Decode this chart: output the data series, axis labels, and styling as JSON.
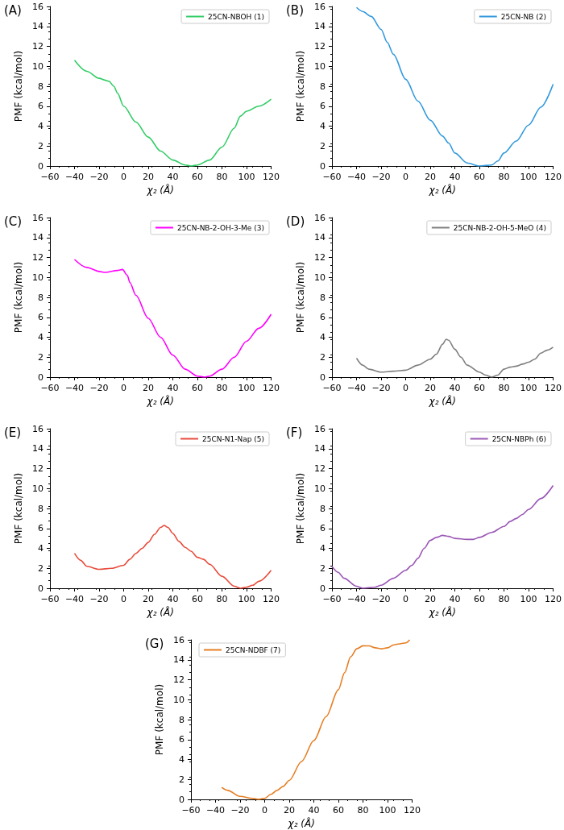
{
  "chart_data": [
    {
      "type": "line",
      "title": "(A)",
      "xlabel": "χ₂ (Å)",
      "ylabel": "PMF (kcal/mol)",
      "xlim": [
        -60,
        120
      ],
      "xticks": [
        -60,
        -40,
        -20,
        0,
        20,
        40,
        60,
        80,
        100,
        120
      ],
      "ylim": [
        0,
        16
      ],
      "yticks": [
        0,
        2,
        4,
        6,
        8,
        10,
        12,
        14,
        16
      ],
      "legend": "top right",
      "series": [
        {
          "name": "25CN-NBOH (1)",
          "color": "#33cc66",
          "x": [
            -40,
            -30,
            -20,
            -15,
            -12,
            -8,
            -5,
            0,
            10,
            20,
            30,
            40,
            50,
            55,
            60,
            70,
            80,
            90,
            95,
            100,
            110,
            120
          ],
          "values": [
            10.6,
            9.5,
            8.8,
            8.6,
            8.5,
            8.0,
            7.3,
            6.0,
            4.4,
            2.9,
            1.5,
            0.6,
            0.1,
            0,
            0.1,
            0.6,
            1.9,
            3.8,
            5.0,
            5.5,
            6.0,
            6.7
          ]
        }
      ]
    },
    {
      "type": "line",
      "title": "(B)",
      "xlabel": "χ₂ (Å)",
      "ylabel": "PMF (kcal/mol)",
      "xlim": [
        -60,
        120
      ],
      "xticks": [
        -60,
        -40,
        -20,
        0,
        20,
        40,
        60,
        80,
        100,
        120
      ],
      "ylim": [
        0,
        16
      ],
      "yticks": [
        0,
        2,
        4,
        6,
        8,
        10,
        12,
        14,
        16
      ],
      "legend": "top right",
      "series": [
        {
          "name": "25CN-NB (2)",
          "color": "#3399dd",
          "x": [
            -40,
            -35,
            -28,
            -20,
            -15,
            -10,
            0,
            10,
            20,
            30,
            35,
            40,
            50,
            60,
            70,
            75,
            80,
            90,
            100,
            110,
            120
          ],
          "values": [
            15.9,
            15.5,
            15.0,
            13.7,
            12.4,
            11.2,
            8.7,
            6.5,
            4.6,
            3.0,
            2.3,
            1.3,
            0.3,
            0,
            0.1,
            0.5,
            1.3,
            2.5,
            4.1,
            5.9,
            8.2
          ]
        }
      ]
    },
    {
      "type": "line",
      "title": "(C)",
      "xlabel": "χ₂ (Å)",
      "ylabel": "PMF (kcal/mol)",
      "xlim": [
        -60,
        120
      ],
      "xticks": [
        -60,
        -40,
        -20,
        0,
        20,
        40,
        60,
        80,
        100,
        120
      ],
      "ylim": [
        0,
        16
      ],
      "yticks": [
        0,
        2,
        4,
        6,
        8,
        10,
        12,
        14,
        16
      ],
      "legend": "top right",
      "series": [
        {
          "name": "25CN-NB-2-OH-3-Me (3)",
          "color": "#ff00ff",
          "x": [
            -40,
            -30,
            -20,
            -15,
            -5,
            -1,
            3,
            5,
            10,
            20,
            30,
            40,
            50,
            60,
            66,
            70,
            80,
            90,
            100,
            110,
            120
          ],
          "values": [
            11.8,
            11.0,
            10.6,
            10.5,
            10.7,
            10.8,
            10.2,
            9.5,
            8.2,
            5.9,
            4.0,
            2.2,
            0.8,
            0.1,
            0,
            0.1,
            0.8,
            2.0,
            3.6,
            4.9,
            6.3
          ]
        }
      ]
    },
    {
      "type": "line",
      "title": "(D)",
      "xlabel": "χ₂ (Å)",
      "ylabel": "PMF (kcal/mol)",
      "xlim": [
        -60,
        120
      ],
      "xticks": [
        -60,
        -40,
        -20,
        0,
        20,
        40,
        60,
        80,
        100,
        120
      ],
      "ylim": [
        0,
        16
      ],
      "yticks": [
        0,
        2,
        4,
        6,
        8,
        10,
        12,
        14,
        16
      ],
      "legend": "top right",
      "series": [
        {
          "name": "25CN-NB-2-OH-5-MeO (4)",
          "color": "#808080",
          "x": [
            -40,
            -35,
            -30,
            -20,
            -10,
            0,
            10,
            20,
            25,
            30,
            33,
            35,
            40,
            45,
            50,
            60,
            65,
            70,
            75,
            80,
            85,
            90,
            95,
            100,
            105,
            110,
            115,
            120
          ],
          "values": [
            1.9,
            1.2,
            0.8,
            0.5,
            0.6,
            0.7,
            1.2,
            1.8,
            2.3,
            3.3,
            3.8,
            3.7,
            2.8,
            2.0,
            1.2,
            0.5,
            0.2,
            0,
            0.2,
            0.8,
            1.0,
            1.1,
            1.3,
            1.5,
            1.8,
            2.4,
            2.7,
            3.0
          ]
        }
      ]
    },
    {
      "type": "line",
      "title": "(E)",
      "xlabel": "χ₂ (Å)",
      "ylabel": "PMF (kcal/mol)",
      "xlim": [
        -60,
        120
      ],
      "xticks": [
        -60,
        -40,
        -20,
        0,
        20,
        40,
        60,
        80,
        100,
        120
      ],
      "ylim": [
        0,
        16
      ],
      "yticks": [
        0,
        2,
        4,
        6,
        8,
        10,
        12,
        14,
        16
      ],
      "legend": "top right",
      "series": [
        {
          "name": "25CN-N1-Nap (5)",
          "color": "#e74c3c",
          "x": [
            -40,
            -35,
            -30,
            -20,
            -10,
            0,
            5,
            10,
            15,
            20,
            25,
            30,
            33,
            36,
            40,
            45,
            50,
            55,
            60,
            65,
            70,
            80,
            90,
            95,
            100,
            105,
            110,
            120
          ],
          "values": [
            3.5,
            2.8,
            2.2,
            1.9,
            2.0,
            2.3,
            2.9,
            3.5,
            4.0,
            4.6,
            5.4,
            6.1,
            6.3,
            6.1,
            5.5,
            4.7,
            4.1,
            3.7,
            3.1,
            2.9,
            2.4,
            1.2,
            0.2,
            0,
            0.1,
            0.3,
            0.7,
            1.8
          ]
        }
      ]
    },
    {
      "type": "line",
      "title": "(F)",
      "xlabel": "χ₂ (Å)",
      "ylabel": "PMF (kcal/mol)",
      "xlim": [
        -60,
        120
      ],
      "xticks": [
        -60,
        -40,
        -20,
        0,
        20,
        40,
        60,
        80,
        100,
        120
      ],
      "ylim": [
        0,
        16
      ],
      "yticks": [
        0,
        2,
        4,
        6,
        8,
        10,
        12,
        14,
        16
      ],
      "legend": "top right",
      "series": [
        {
          "name": "25CN-NBPh (6)",
          "color": "#9b59b6",
          "x": [
            -60,
            -55,
            -50,
            -40,
            -35,
            -25,
            -20,
            -10,
            0,
            5,
            10,
            15,
            20,
            25,
            30,
            35,
            40,
            50,
            55,
            60,
            70,
            80,
            85,
            90,
            95,
            100,
            110,
            120
          ],
          "values": [
            2.2,
            1.6,
            1.0,
            0.2,
            0,
            0.1,
            0.3,
            1.0,
            1.8,
            2.3,
            3.0,
            4.0,
            4.8,
            5.1,
            5.3,
            5.2,
            5.0,
            4.9,
            4.9,
            5.1,
            5.6,
            6.2,
            6.7,
            7.0,
            7.4,
            7.9,
            9.0,
            10.3
          ]
        }
      ]
    },
    {
      "type": "line",
      "title": "(G)",
      "xlabel": "χ₂ (Å)",
      "ylabel": "PMF (kcal/mol)",
      "xlim": [
        -60,
        120
      ],
      "xticks": [
        -60,
        -40,
        -20,
        0,
        20,
        40,
        60,
        80,
        100,
        120
      ],
      "ylim": [
        0,
        16
      ],
      "yticks": [
        0,
        2,
        4,
        6,
        8,
        10,
        12,
        14,
        16
      ],
      "legend": "top left",
      "series": [
        {
          "name": "25CN-NDBF (7)",
          "color": "#e67e22",
          "x": [
            -35,
            -30,
            -20,
            -10,
            -5,
            0,
            5,
            10,
            15,
            20,
            30,
            40,
            50,
            60,
            65,
            70,
            75,
            80,
            85,
            90,
            95,
            100,
            105,
            110,
            115,
            118
          ],
          "values": [
            1.2,
            0.9,
            0.3,
            0.1,
            0,
            0.1,
            0.5,
            0.9,
            1.3,
            1.9,
            3.8,
            5.9,
            8.3,
            11.0,
            12.7,
            14.3,
            15.1,
            15.4,
            15.4,
            15.2,
            15.1,
            15.2,
            15.5,
            15.6,
            15.7,
            16.0
          ]
        }
      ]
    }
  ]
}
